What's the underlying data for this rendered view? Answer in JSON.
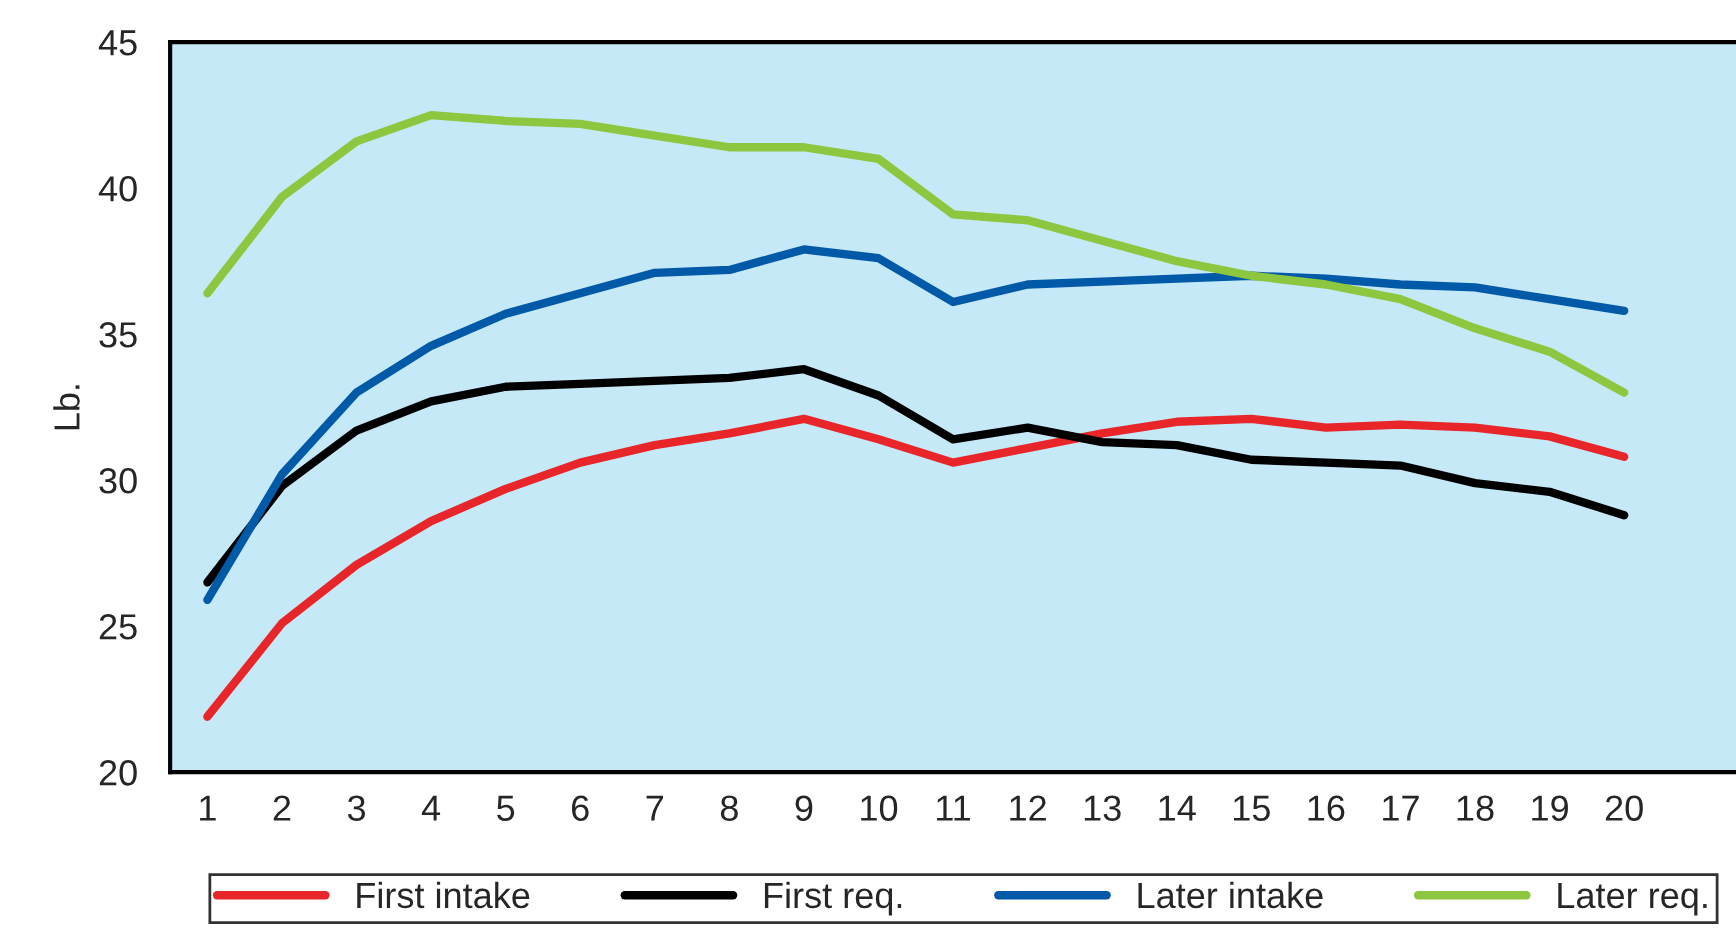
{
  "chart_data": {
    "type": "line",
    "ylabel": "Lb.",
    "categories": [
      "1",
      "2",
      "3",
      "4",
      "5",
      "6",
      "7",
      "8",
      "9",
      "10",
      "11",
      "12",
      "13",
      "14",
      "15",
      "16",
      "17",
      "18",
      "19",
      "20",
      null
    ],
    "series": [
      {
        "name": "First intake",
        "color": "#e8262a",
        "values": [
          21.9,
          25.1,
          27.1,
          28.6,
          29.7,
          30.6,
          31.2,
          31.6,
          32.1,
          31.4,
          30.6,
          31.1,
          31.6,
          32.0,
          32.1,
          31.8,
          31.9,
          31.8,
          31.5,
          30.8,
          null
        ]
      },
      {
        "name": "First req.",
        "color": "#000000",
        "values": [
          26.5,
          29.8,
          31.7,
          32.7,
          33.2,
          33.3,
          33.4,
          33.5,
          33.8,
          32.9,
          31.4,
          31.8,
          31.3,
          31.2,
          30.7,
          30.6,
          30.5,
          29.9,
          29.6,
          28.8,
          null
        ]
      },
      {
        "name": "Later intake",
        "color": "#005aa8",
        "values": [
          25.9,
          30.2,
          33.0,
          34.6,
          35.7,
          36.4,
          37.1,
          37.2,
          37.9,
          37.6,
          36.1,
          36.7,
          36.8,
          36.9,
          37.0,
          36.9,
          36.7,
          36.6,
          36.2,
          35.8,
          null
        ]
      },
      {
        "name": "Later req.",
        "color": "#8dc63f",
        "values": [
          36.4,
          39.7,
          41.6,
          42.5,
          42.3,
          42.2,
          41.8,
          41.4,
          41.4,
          41.0,
          39.1,
          38.9,
          38.2,
          37.5,
          37.0,
          36.7,
          36.2,
          35.2,
          34.4,
          33.0,
          null
        ]
      }
    ],
    "ylim": [
      20,
      45
    ],
    "yticks": [
      20,
      25,
      30,
      35,
      40,
      45
    ],
    "grid": false,
    "legend": "bottom",
    "marker": "none",
    "line_style": "solid"
  }
}
